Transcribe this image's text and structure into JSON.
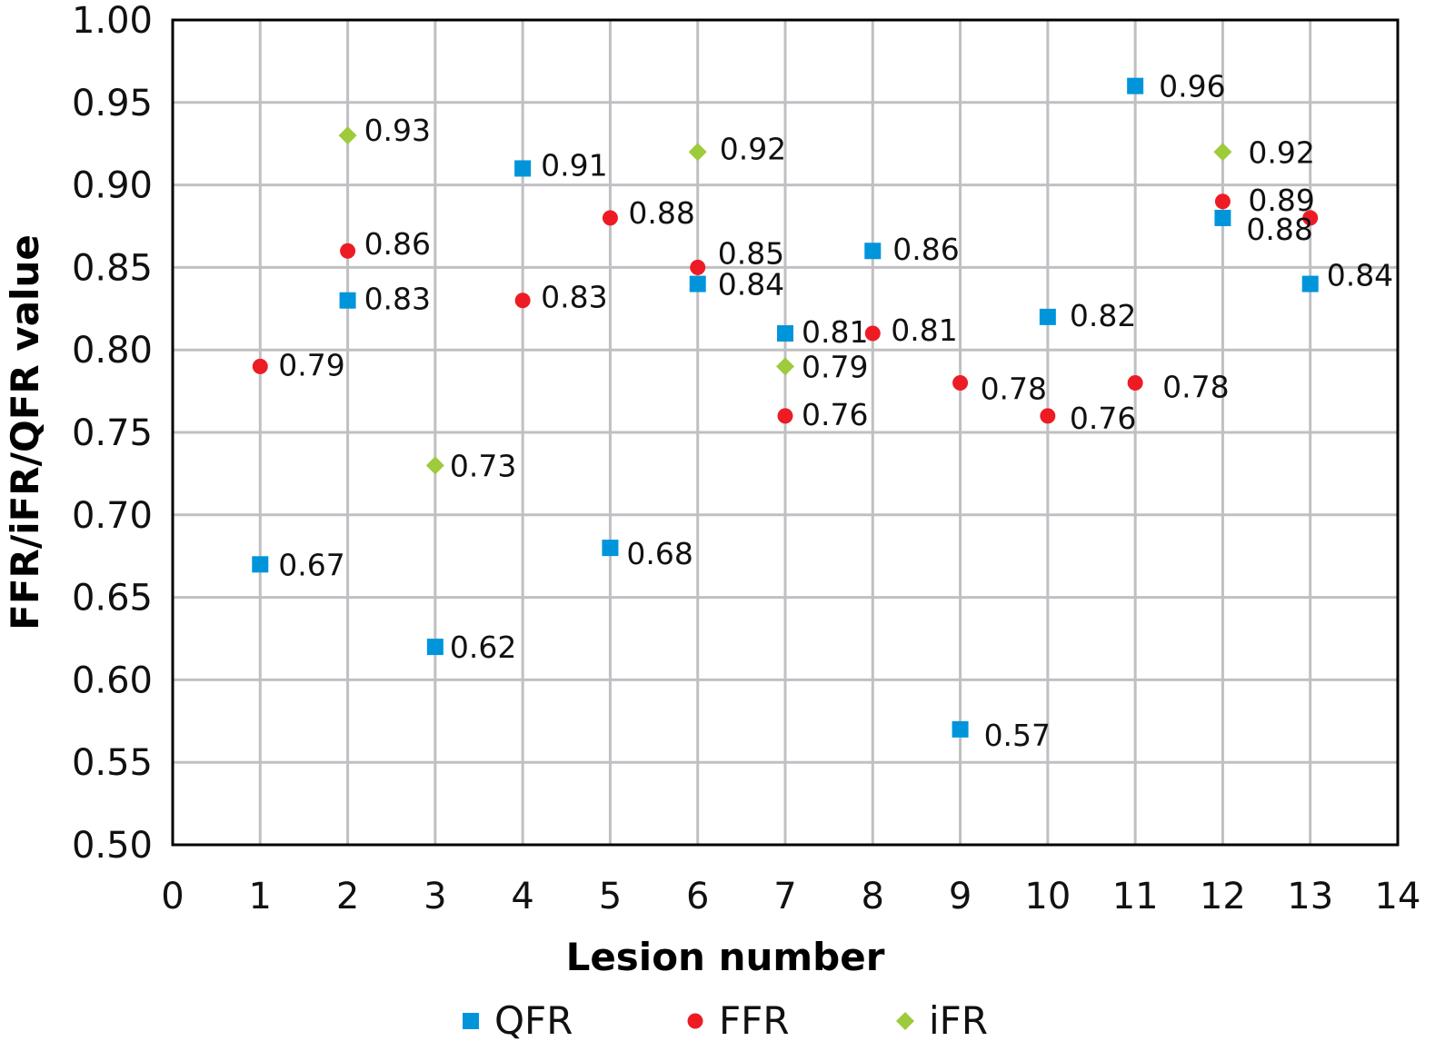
{
  "chart_data": {
    "type": "scatter",
    "title": "",
    "xlabel": "Lesion number",
    "ylabel": "FFR/iFR/QFR value",
    "xlim": [
      0,
      14
    ],
    "ylim": [
      0.5,
      1.0
    ],
    "x_ticks": [
      "0",
      "1",
      "2",
      "3",
      "4",
      "5",
      "6",
      "7",
      "8",
      "9",
      "10",
      "11",
      "12",
      "13",
      "14"
    ],
    "y_ticks": [
      "0.50",
      "0.55",
      "0.60",
      "0.65",
      "0.70",
      "0.75",
      "0.80",
      "0.85",
      "0.90",
      "0.95",
      "1.00"
    ],
    "grid": true,
    "legend_position": "bottom",
    "series": [
      {
        "name": "QFR",
        "color": "#0095DA",
        "marker": "square",
        "points": [
          {
            "x": 1,
            "y": 0.67,
            "label": "0.67"
          },
          {
            "x": 2,
            "y": 0.83,
            "label": "0.83"
          },
          {
            "x": 3,
            "y": 0.62,
            "label": "0.62"
          },
          {
            "x": 4,
            "y": 0.91,
            "label": "0.91"
          },
          {
            "x": 5,
            "y": 0.68,
            "label": "0.68"
          },
          {
            "x": 6,
            "y": 0.84,
            "label": "0.84"
          },
          {
            "x": 7,
            "y": 0.81,
            "label": "0.81"
          },
          {
            "x": 8,
            "y": 0.86,
            "label": "0.86"
          },
          {
            "x": 9,
            "y": 0.57,
            "label": "0.57"
          },
          {
            "x": 10,
            "y": 0.82,
            "label": "0.82"
          },
          {
            "x": 11,
            "y": 0.96,
            "label": "0.96"
          },
          {
            "x": 12,
            "y": 0.88,
            "label": "0.88"
          },
          {
            "x": 13,
            "y": 0.84,
            "label": "0.84"
          }
        ]
      },
      {
        "name": "FFR",
        "color": "#ED1C24",
        "marker": "circle",
        "points": [
          {
            "x": 1,
            "y": 0.79,
            "label": "0.79"
          },
          {
            "x": 2,
            "y": 0.86,
            "label": "0.86"
          },
          {
            "x": 4,
            "y": 0.83,
            "label": "0.83"
          },
          {
            "x": 5,
            "y": 0.88,
            "label": "0.88"
          },
          {
            "x": 6,
            "y": 0.85,
            "label": "0.85"
          },
          {
            "x": 7,
            "y": 0.76,
            "label": "0.76"
          },
          {
            "x": 8,
            "y": 0.81,
            "label": "0.81"
          },
          {
            "x": 9,
            "y": 0.78,
            "label": "0.78"
          },
          {
            "x": 10,
            "y": 0.76,
            "label": "0.76"
          },
          {
            "x": 11,
            "y": 0.78,
            "label": "0.78"
          },
          {
            "x": 12,
            "y": 0.89,
            "label": "0.89"
          },
          {
            "x": 13,
            "y": 0.88,
            "label": ""
          }
        ]
      },
      {
        "name": "iFR",
        "color": "#9DCB3B",
        "marker": "diamond",
        "points": [
          {
            "x": 2,
            "y": 0.93,
            "label": "0.93"
          },
          {
            "x": 3,
            "y": 0.73,
            "label": "0.73"
          },
          {
            "x": 6,
            "y": 0.92,
            "label": "0.92"
          },
          {
            "x": 7,
            "y": 0.79,
            "label": "0.79"
          },
          {
            "x": 12,
            "y": 0.92,
            "label": "0.92"
          }
        ]
      }
    ]
  }
}
